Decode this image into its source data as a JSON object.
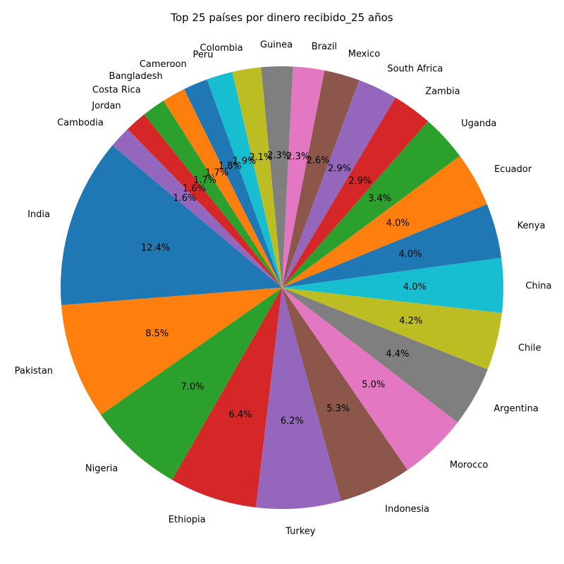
{
  "chart_data": {
    "type": "pie",
    "title": "Top 25 países por dinero recibido_25 años",
    "slices": [
      {
        "label": "India",
        "value": 12.4,
        "pct_label": "12.4%",
        "color": "#1f77b4"
      },
      {
        "label": "Pakistan",
        "value": 8.5,
        "pct_label": "8.5%",
        "color": "#ff7f0e"
      },
      {
        "label": "Nigeria",
        "value": 7.0,
        "pct_label": "7.0%",
        "color": "#2ca02c"
      },
      {
        "label": "Ethiopia",
        "value": 6.4,
        "pct_label": "6.4%",
        "color": "#d62728"
      },
      {
        "label": "Turkey",
        "value": 6.2,
        "pct_label": "6.2%",
        "color": "#9467bd"
      },
      {
        "label": "Indonesia",
        "value": 5.3,
        "pct_label": "5.3%",
        "color": "#8c564b"
      },
      {
        "label": "Morocco",
        "value": 5.0,
        "pct_label": "5.0%",
        "color": "#e377c2"
      },
      {
        "label": "Argentina",
        "value": 4.4,
        "pct_label": "4.4%",
        "color": "#7f7f7f"
      },
      {
        "label": "Chile",
        "value": 4.2,
        "pct_label": "4.2%",
        "color": "#bcbd22"
      },
      {
        "label": "China",
        "value": 4.0,
        "pct_label": "4.0%",
        "color": "#17becf"
      },
      {
        "label": "Kenya",
        "value": 4.0,
        "pct_label": "4.0%",
        "color": "#1f77b4"
      },
      {
        "label": "Ecuador",
        "value": 4.0,
        "pct_label": "4.0%",
        "color": "#ff7f0e"
      },
      {
        "label": "Uganda",
        "value": 3.4,
        "pct_label": "3.4%",
        "color": "#2ca02c"
      },
      {
        "label": "Zambia",
        "value": 2.9,
        "pct_label": "2.9%",
        "color": "#d62728"
      },
      {
        "label": "South Africa",
        "value": 2.9,
        "pct_label": "2.9%",
        "color": "#9467bd"
      },
      {
        "label": "Mexico",
        "value": 2.6,
        "pct_label": "2.6%",
        "color": "#8c564b"
      },
      {
        "label": "Brazil",
        "value": 2.3,
        "pct_label": "2.3%",
        "color": "#e377c2"
      },
      {
        "label": "Guinea",
        "value": 2.3,
        "pct_label": "2.3%",
        "color": "#7f7f7f"
      },
      {
        "label": "Colombia",
        "value": 2.1,
        "pct_label": "2.1%",
        "color": "#bcbd22"
      },
      {
        "label": "Peru",
        "value": 1.9,
        "pct_label": "1.9%",
        "color": "#17becf"
      },
      {
        "label": "Cameroon",
        "value": 1.8,
        "pct_label": "1.8%",
        "color": "#1f77b4"
      },
      {
        "label": "Bangladesh",
        "value": 1.7,
        "pct_label": "1.7%",
        "color": "#ff7f0e"
      },
      {
        "label": "Costa Rica",
        "value": 1.7,
        "pct_label": "1.7%",
        "color": "#2ca02c"
      },
      {
        "label": "Jordan",
        "value": 1.6,
        "pct_label": "1.6%",
        "color": "#d62728"
      },
      {
        "label": "Cambodia",
        "value": 1.6,
        "pct_label": "1.6%",
        "color": "#9467bd"
      }
    ],
    "start_angle_deg": 140,
    "direction": "counterclockwise",
    "legend": "none"
  }
}
